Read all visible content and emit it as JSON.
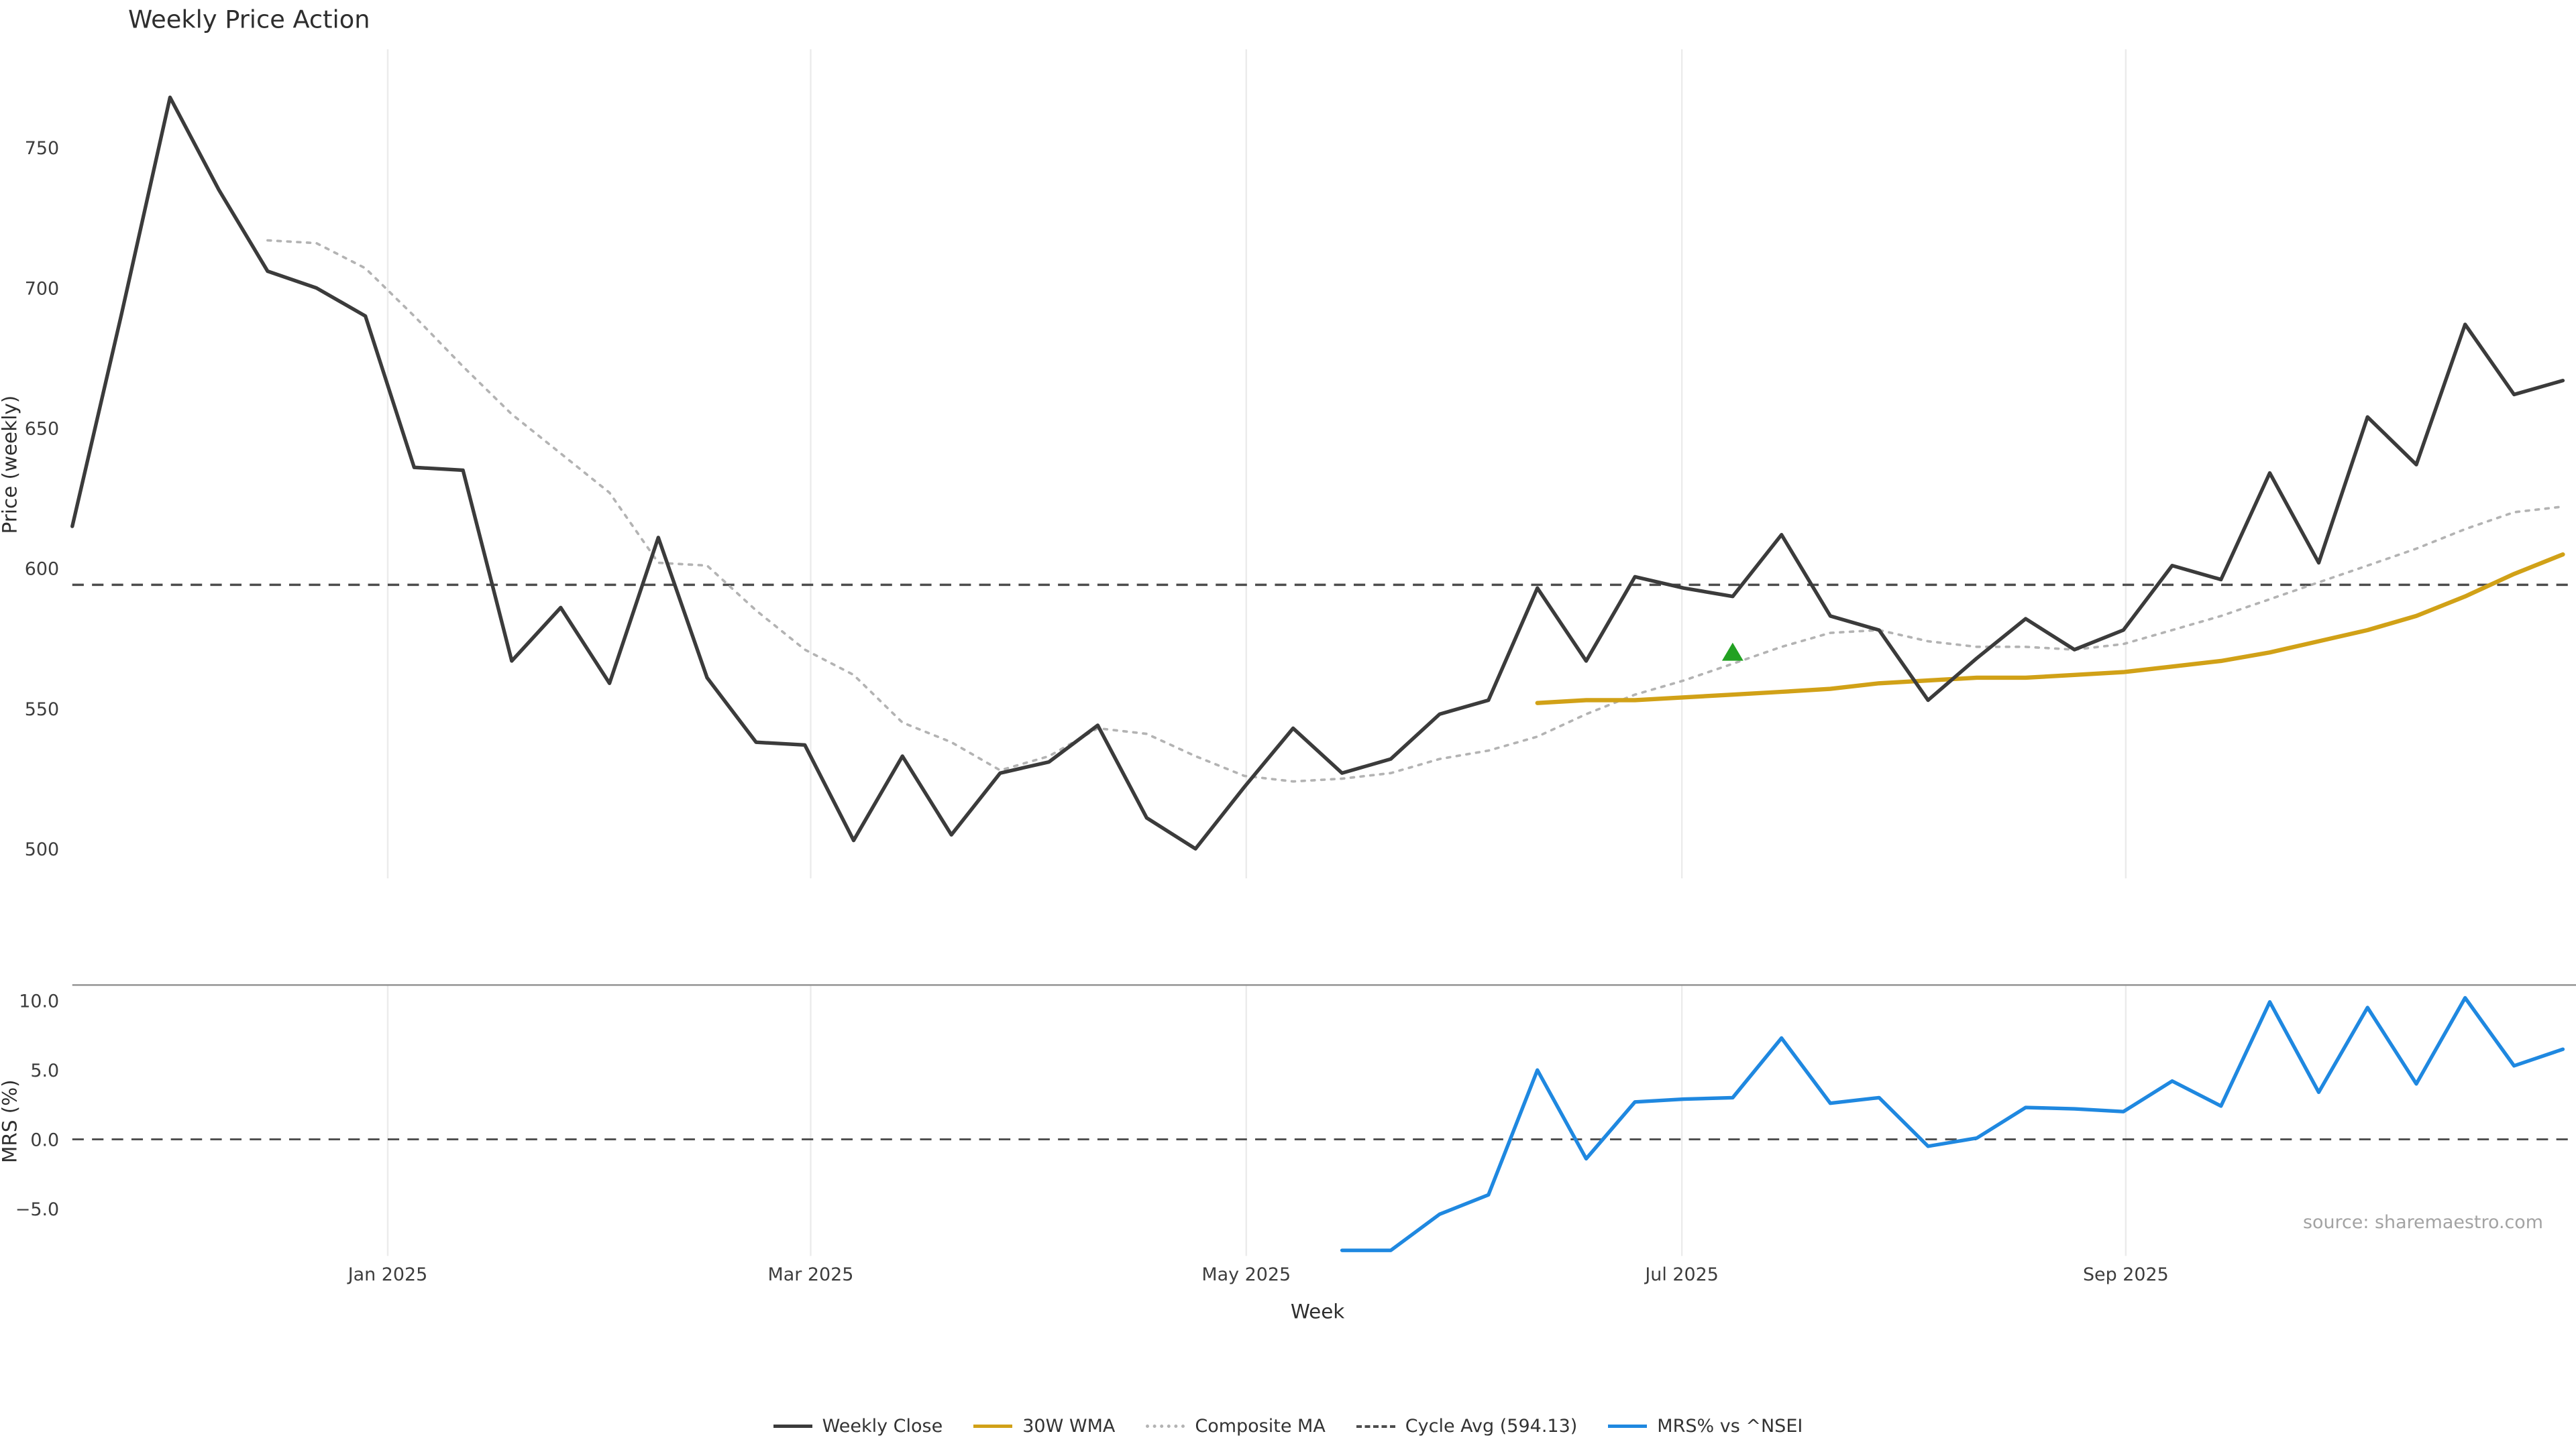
{
  "chart_data": {
    "type": "line",
    "title": "Weekly Price Action",
    "xlabel": "Week",
    "source": "source: sharemaestro.com",
    "x_ticks": [
      {
        "label": "Jan 2025",
        "week": 6.46
      },
      {
        "label": "Mar 2025",
        "week": 15.12
      },
      {
        "label": "May 2025",
        "week": 24.04
      },
      {
        "label": "Jul 2025",
        "week": 32.96
      },
      {
        "label": "Sep 2025",
        "week": 42.05
      }
    ],
    "panels": [
      {
        "name": "price",
        "ylabel": "Price (weekly)",
        "ylim": [
          480,
          785
        ],
        "yticks": [
          {
            "value": 500,
            "label": "500"
          },
          {
            "value": 550,
            "label": "550"
          },
          {
            "value": 600,
            "label": "600"
          },
          {
            "value": 650,
            "label": "650"
          },
          {
            "value": 700,
            "label": "700"
          },
          {
            "value": 750,
            "label": "750"
          }
        ],
        "series": [
          {
            "name": "Weekly Close",
            "color": "#3b3b3b",
            "style": "solid",
            "start_week": 0,
            "values": [
              615,
              690,
              768,
              735,
              706,
              700,
              690,
              636,
              635,
              567,
              586,
              559,
              611,
              561,
              538,
              537,
              503,
              533,
              505,
              527,
              531,
              544,
              511,
              500,
              522,
              543,
              527,
              532,
              548,
              553,
              593,
              567,
              597,
              593,
              590,
              612,
              583,
              578,
              553,
              568,
              582,
              571,
              578,
              601,
              596,
              634,
              602,
              654,
              637,
              687,
              662,
              667
            ]
          },
          {
            "name": "30W WMA",
            "color": "#d1a117",
            "style": "solid",
            "start_week": 30,
            "values": [
              552,
              553,
              553,
              554,
              555,
              556,
              557,
              559,
              560,
              561,
              561,
              562,
              563,
              565,
              567,
              570,
              574,
              578,
              583,
              590,
              598,
              605
            ]
          },
          {
            "name": "Composite MA",
            "color": "#b3b3b3",
            "style": "dotted",
            "start_week": 4,
            "values": [
              717,
              716,
              707,
              690,
              672,
              655,
              641,
              627,
              602,
              601,
              585,
              571,
              562,
              545,
              538,
              528,
              533,
              543,
              541,
              533,
              526,
              524,
              525,
              527,
              532,
              535,
              540,
              548,
              555,
              560,
              566,
              572,
              577,
              578,
              574,
              572,
              572,
              571,
              573,
              578,
              583,
              589,
              595,
              601,
              607,
              614,
              620,
              622
            ]
          },
          {
            "name": "Cycle Avg (594.13)",
            "color": "#4d4d4d",
            "style": "dashed",
            "value": 594.13
          }
        ],
        "marker": {
          "shape": "triangle-up",
          "color": "#22a122",
          "week": 34,
          "value": 570
        }
      },
      {
        "name": "mrs",
        "ylabel": "MRS (%)",
        "ylim": [
          -9.5,
          11.5
        ],
        "zero_line": 0,
        "yticks": [
          {
            "value": 10,
            "label": "10.0"
          },
          {
            "value": 5,
            "label": "5.0"
          },
          {
            "value": 0,
            "label": "0.0"
          },
          {
            "value": -5,
            "label": "−5.0"
          }
        ],
        "series": [
          {
            "name": "MRS% vs ^NSEI",
            "color": "#1f88e0",
            "style": "solid",
            "start_week": 26,
            "values": [
              -8.0,
              -8.0,
              -5.4,
              -4.0,
              5.0,
              -1.4,
              2.7,
              2.9,
              3.0,
              7.3,
              2.6,
              3.0,
              -0.5,
              0.1,
              2.3,
              2.2,
              2.0,
              4.2,
              2.4,
              9.9,
              3.4,
              9.5,
              4.0,
              10.2,
              5.3,
              6.5
            ]
          }
        ]
      }
    ]
  }
}
